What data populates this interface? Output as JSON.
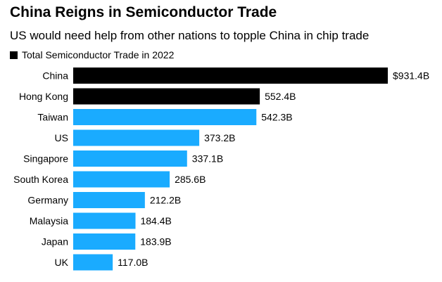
{
  "chart_data": {
    "type": "bar",
    "orientation": "horizontal",
    "title": "China Reigns in Semiconductor Trade",
    "subtitle": "US would need help from other nations to topple China in chip trade",
    "legend": [
      {
        "label": "Total Semiconductor Trade in 2022",
        "color": "#000000"
      }
    ],
    "unit": "Billion USD",
    "categories": [
      "China",
      "Hong Kong",
      "Taiwan",
      "US",
      "Singapore",
      "South Korea",
      "Germany",
      "Malaysia",
      "Japan",
      "UK"
    ],
    "values": [
      931.4,
      552.4,
      542.3,
      373.2,
      337.1,
      285.6,
      212.2,
      184.4,
      183.9,
      117.0
    ],
    "value_labels": [
      "$931.4B",
      "552.4B",
      "542.3B",
      "373.2B",
      "337.1B",
      "285.6B",
      "212.2B",
      "184.4B",
      "183.9B",
      "117.0B"
    ],
    "bar_colors": [
      "#000000",
      "#000000",
      "#1aabff",
      "#1aabff",
      "#1aabff",
      "#1aabff",
      "#1aabff",
      "#1aabff",
      "#1aabff",
      "#1aabff"
    ],
    "xlim": [
      0,
      931.4
    ]
  }
}
